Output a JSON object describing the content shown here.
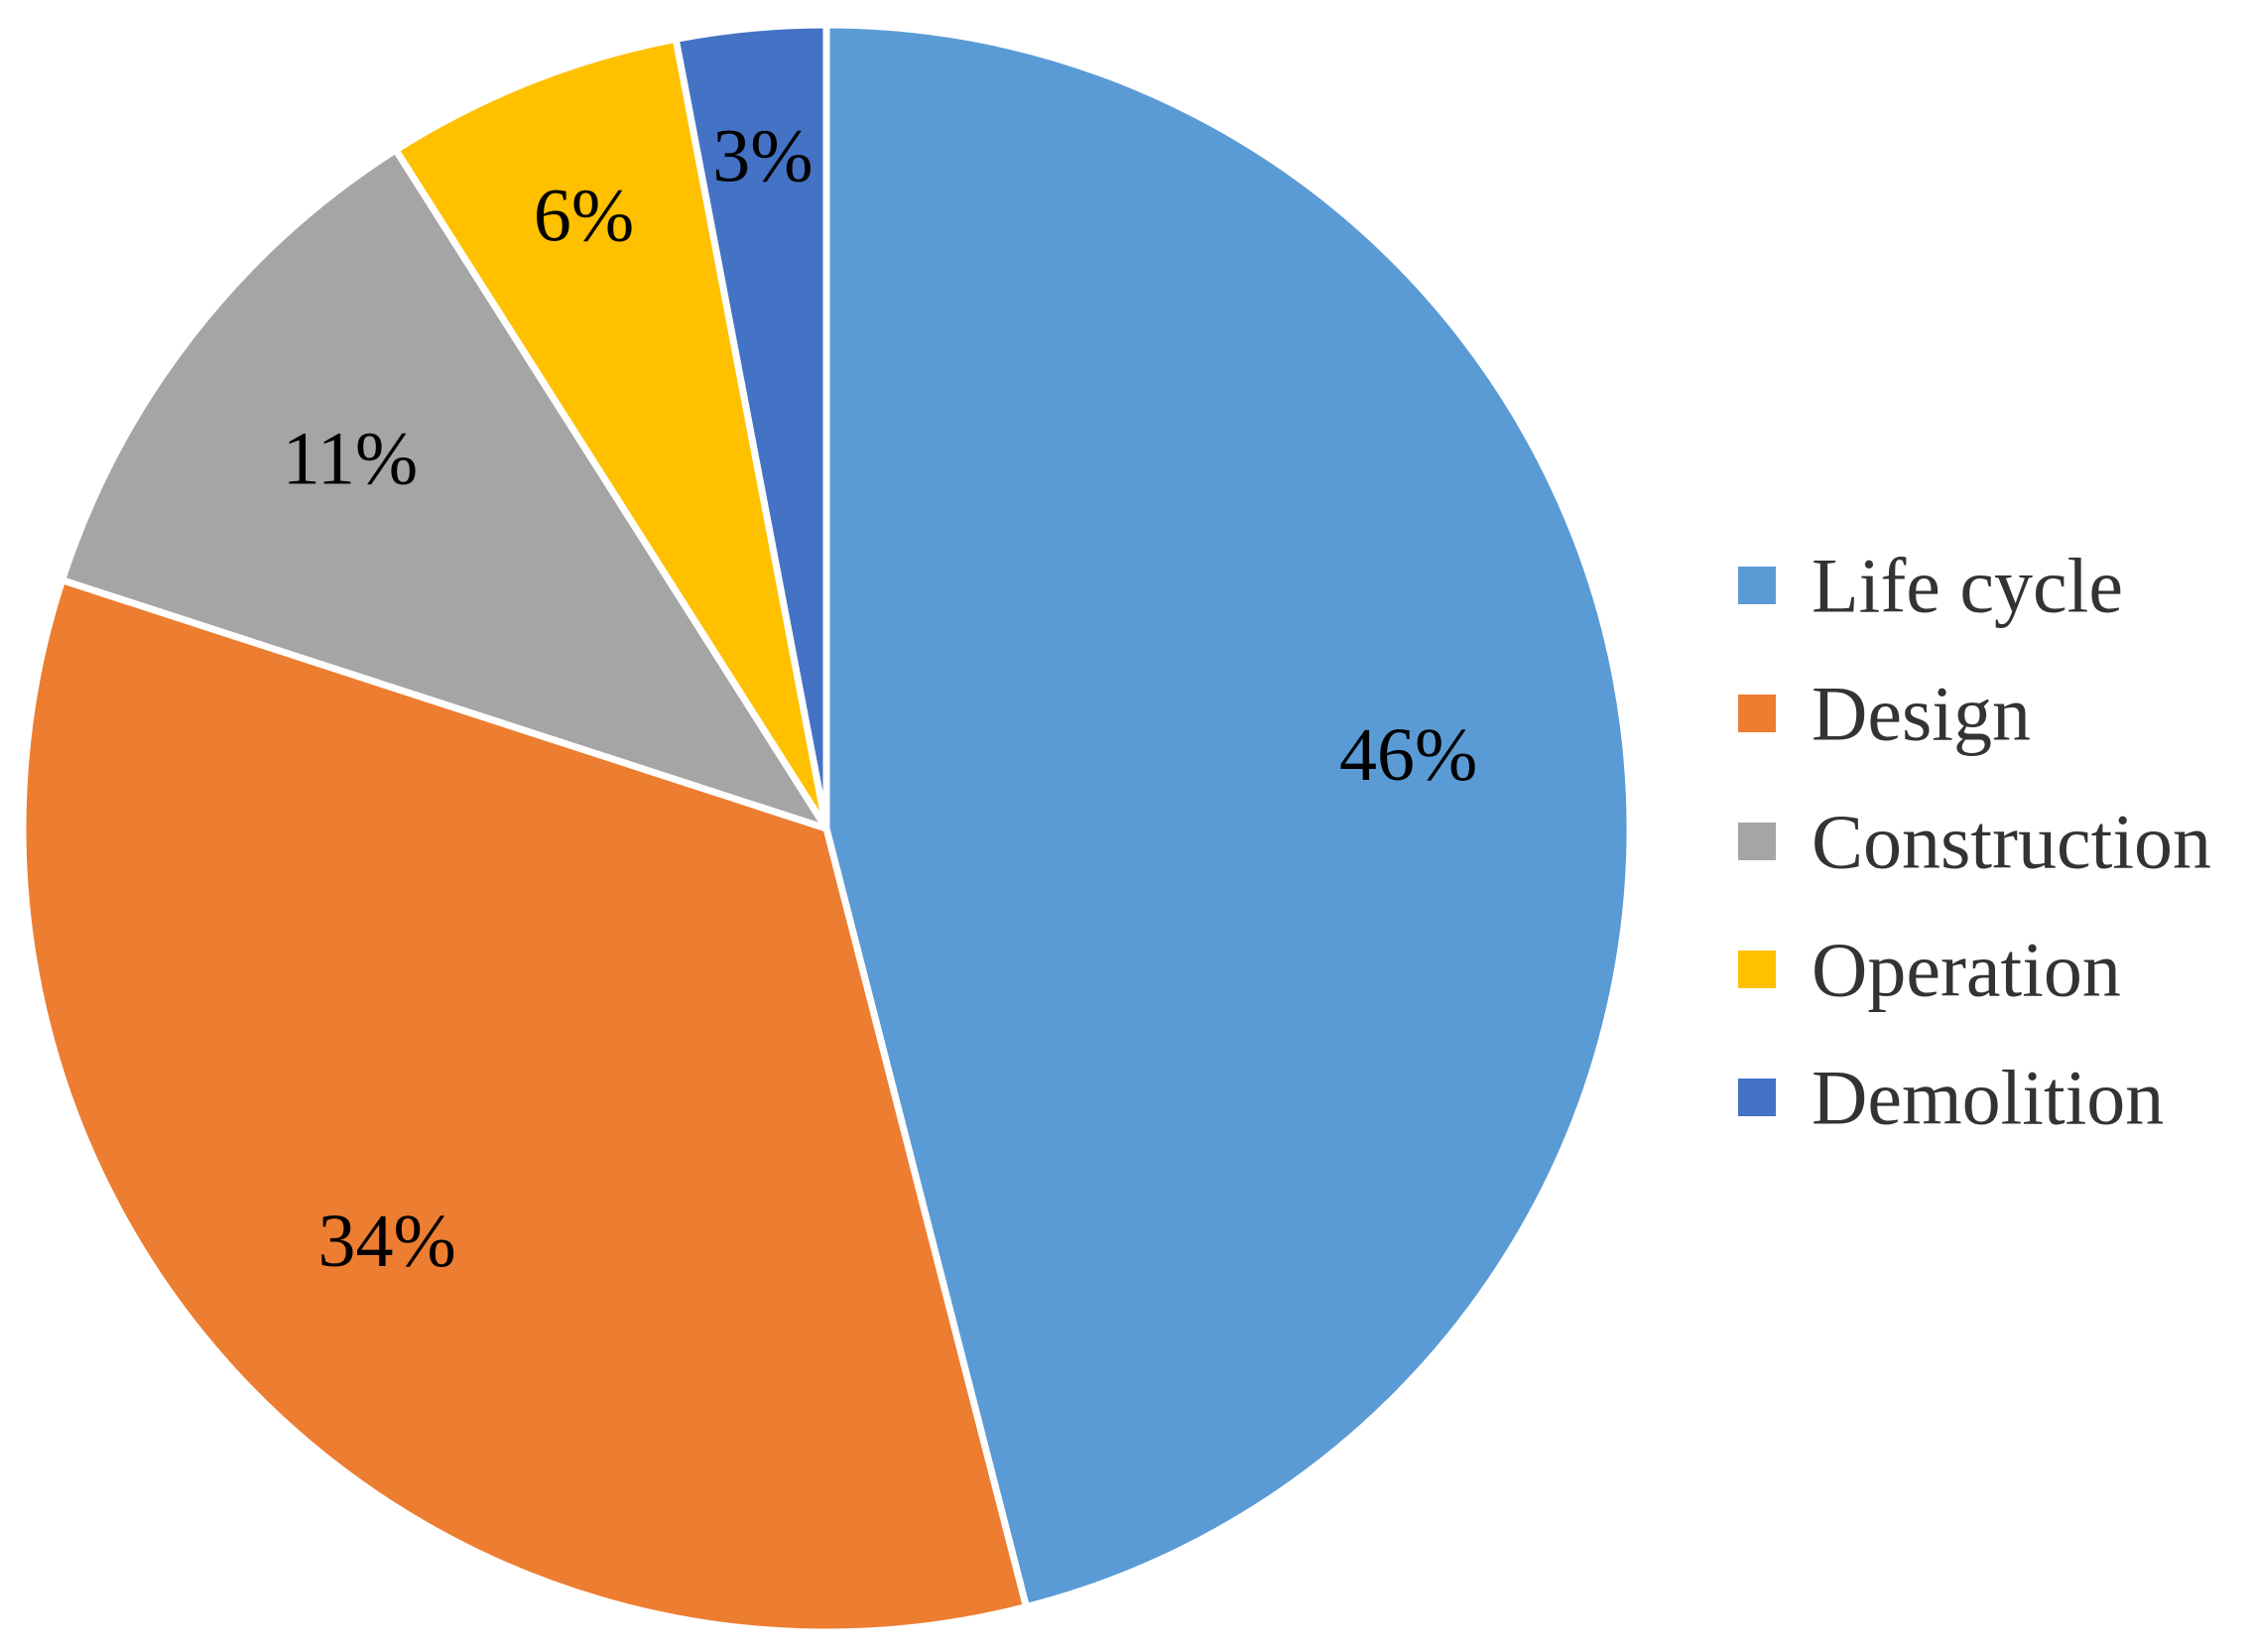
{
  "chart_data": {
    "type": "pie",
    "title": "",
    "categories": [
      "Life cycle",
      "Design",
      "Construction",
      "Operation",
      "Demolition"
    ],
    "values": [
      46,
      34,
      11,
      6,
      3
    ],
    "labels": [
      "46%",
      "34%",
      "11%",
      "6%",
      "3%"
    ],
    "colors": [
      "#5B9BD5",
      "#ED7D31",
      "#A5A5A5",
      "#FFC000",
      "#4472C4"
    ],
    "start_angle": "12 o'clock",
    "direction": "clockwise",
    "legend_position": "right"
  }
}
